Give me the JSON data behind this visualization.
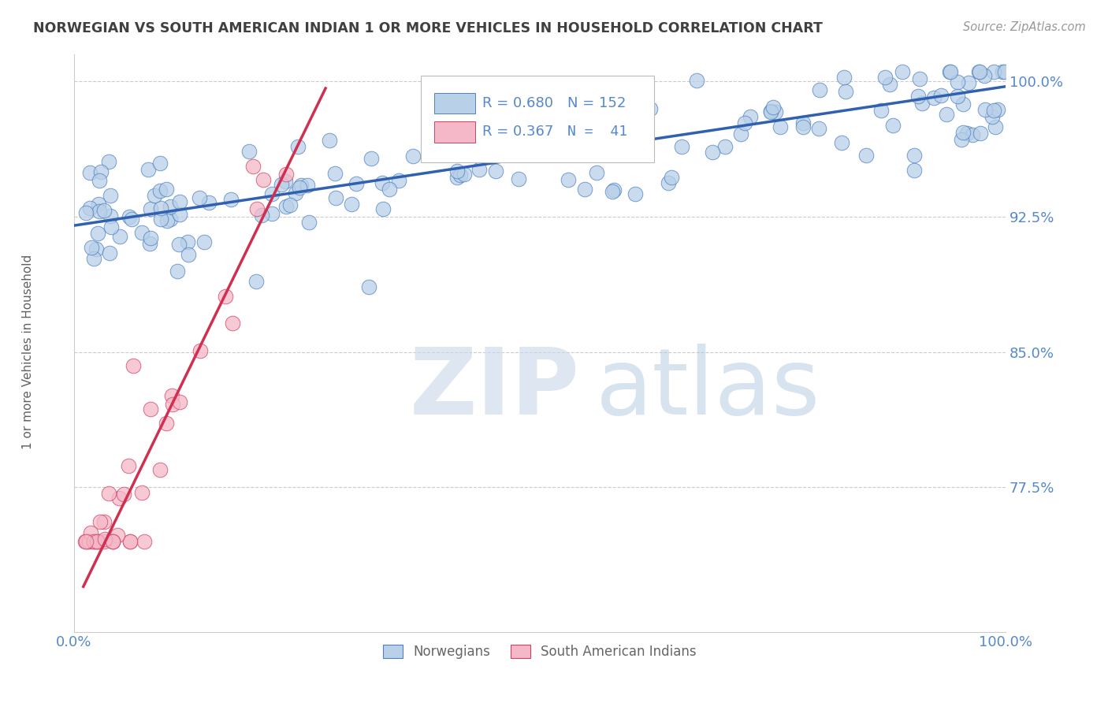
{
  "title": "NORWEGIAN VS SOUTH AMERICAN INDIAN 1 OR MORE VEHICLES IN HOUSEHOLD CORRELATION CHART",
  "source_text": "Source: ZipAtlas.com",
  "ylabel": "1 or more Vehicles in Household",
  "watermark_zip": "ZIP",
  "watermark_atlas": "atlas",
  "xlim": [
    0.0,
    1.0
  ],
  "ylim": [
    0.695,
    1.015
  ],
  "yticks": [
    0.775,
    0.85,
    0.925,
    1.0
  ],
  "ytick_labels": [
    "77.5%",
    "85.0%",
    "92.5%",
    "100.0%"
  ],
  "xtick_labels": [
    "0.0%",
    "100.0%"
  ],
  "norwegian_R": 0.68,
  "norwegian_N": 152,
  "sai_R": 0.367,
  "sai_N": 41,
  "norwegian_color": "#b8d0e8",
  "sai_color": "#f5b8c8",
  "norwegian_edge_color": "#5080c0",
  "sai_edge_color": "#d04060",
  "norwegian_line_color": "#3060b0",
  "sai_line_color": "#d03050",
  "legend_label_norwegian": "Norwegians",
  "legend_label_sai": "South American Indians",
  "background_color": "#ffffff",
  "grid_color": "#cccccc",
  "title_color": "#404040",
  "axis_label_color": "#606060",
  "tick_label_color": "#5588cc",
  "r_label_color": "#5588cc",
  "nor_trend_x0": 0.0,
  "nor_trend_x1": 1.0,
  "nor_trend_y0": 0.92,
  "nor_trend_y1": 0.997,
  "sai_trend_x0": 0.01,
  "sai_trend_x1": 0.27,
  "sai_trend_y0": 0.72,
  "sai_trend_y1": 0.996
}
